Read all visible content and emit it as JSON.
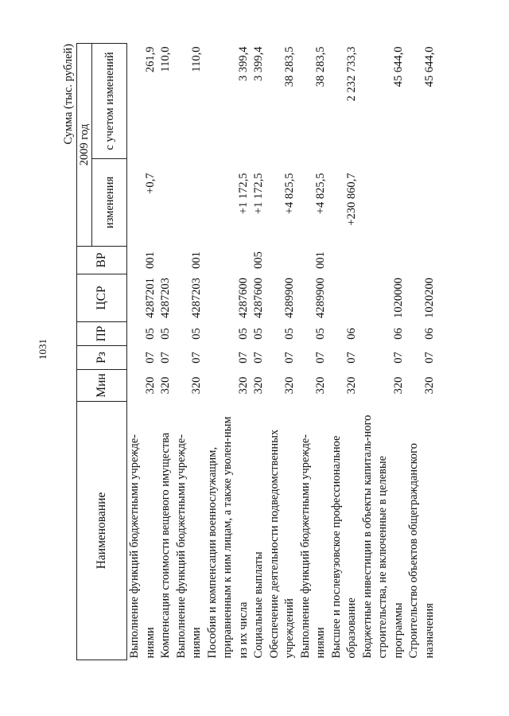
{
  "page_number": "1031",
  "caption": "Сумма (тыс. рублей)",
  "header": {
    "name": "Наименование",
    "min": "Мин",
    "rz": "Рз",
    "pr": "ПР",
    "csr": "ЦСР",
    "vr": "ВР",
    "year": "2009 год",
    "changes": "изменения",
    "with_changes": "с учетом изменений"
  },
  "rows": [
    {
      "name": "Выполнение функций бюджетными учрежде-ниями",
      "min": "320",
      "rz": "07",
      "pr": "05",
      "csr": "4287201",
      "vr": "001",
      "change": "+0,7",
      "total": "261,9"
    },
    {
      "name": "Компенсация стоимости вещевого имущества",
      "min": "320",
      "rz": "07",
      "pr": "05",
      "csr": "4287203",
      "vr": "",
      "change": "",
      "total": "110,0"
    },
    {
      "name": "Выполнение функций бюджетными учрежде-ниями",
      "min": "320",
      "rz": "07",
      "pr": "05",
      "csr": "4287203",
      "vr": "001",
      "change": "",
      "total": "110,0"
    },
    {
      "name": "Пособия и компенсации военнослужащим, приравненным к ним лицам, а также уволен-ным из их числа",
      "min": "320",
      "rz": "07",
      "pr": "05",
      "csr": "4287600",
      "vr": "",
      "change": "+1 172,5",
      "total": "3 399,4"
    },
    {
      "name": "Социальные выплаты",
      "min": "320",
      "rz": "07",
      "pr": "05",
      "csr": "4287600",
      "vr": "005",
      "change": "+1 172,5",
      "total": "3 399,4"
    },
    {
      "name": "Обеспечение деятельности подведомственных учреждений",
      "min": "320",
      "rz": "07",
      "pr": "05",
      "csr": "4289900",
      "vr": "",
      "change": "+4 825,5",
      "total": "38 283,5"
    },
    {
      "name": "Выполнение функций бюджетными учрежде-ниями",
      "min": "320",
      "rz": "07",
      "pr": "05",
      "csr": "4289900",
      "vr": "001",
      "change": "+4 825,5",
      "total": "38 283,5"
    },
    {
      "name": "Высшее и послевузовское профессиональное образование",
      "min": "320",
      "rz": "07",
      "pr": "06",
      "csr": "",
      "vr": "",
      "change": "+230 860,7",
      "total": "2 232 733,3"
    },
    {
      "name": "Бюджетные инвестиции в объекты капиталь-ного строительства, не включенные в целевые программы",
      "min": "320",
      "rz": "07",
      "pr": "06",
      "csr": "1020000",
      "vr": "",
      "change": "",
      "total": "45 644,0"
    },
    {
      "name": "Строительство объектов общегражданского назначения",
      "min": "320",
      "rz": "07",
      "pr": "06",
      "csr": "1020200",
      "vr": "",
      "change": "",
      "total": "45 644,0"
    }
  ]
}
